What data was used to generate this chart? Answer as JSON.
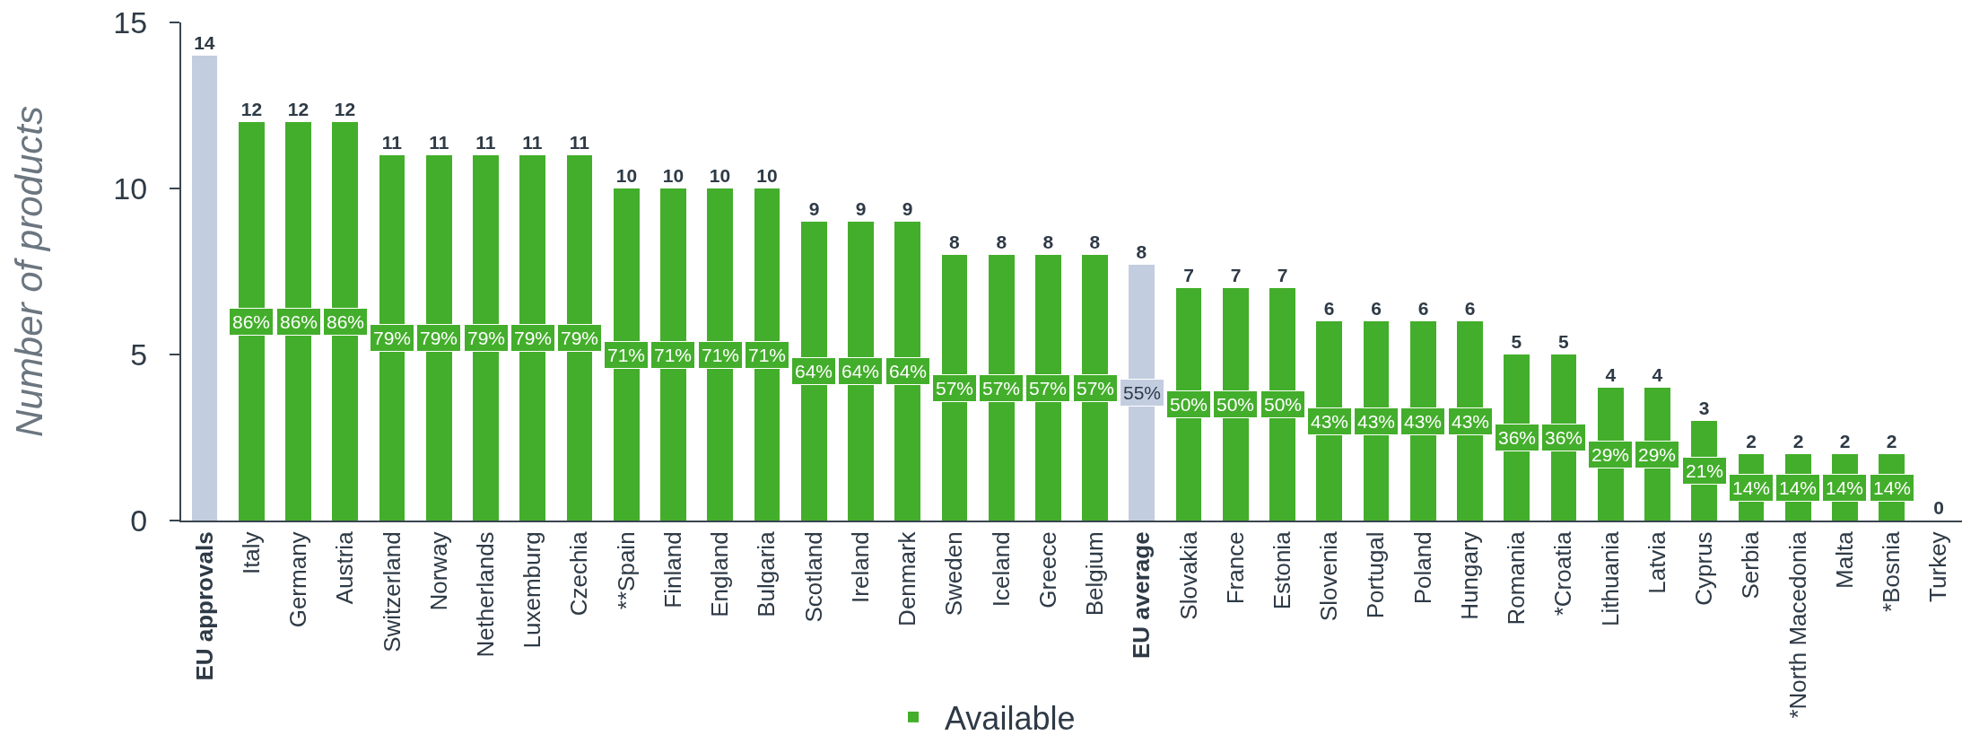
{
  "chart_data": {
    "type": "bar",
    "ylabel": "Number of products",
    "categories": [
      "EU approvals",
      "Italy",
      "Germany",
      "Austria",
      "Switzerland",
      "Norway",
      "Netherlands",
      "Luxemburg",
      "Czechia",
      "**Spain",
      "Finland",
      "England",
      "Bulgaria",
      "Scotland",
      "Ireland",
      "Denmark",
      "Sweden",
      "Iceland",
      "Greece",
      "Belgium",
      "EU average",
      "Slovakia",
      "France",
      "Estonia",
      "Slovenia",
      "Portugal",
      "Poland",
      "Hungary",
      "Romania",
      "*Croatia",
      "Lithuania",
      "Latvia",
      "Cyprus",
      "Serbia",
      "*North Macedonia",
      "Malta",
      "*Bosnia",
      "Turkey"
    ],
    "series": [
      {
        "name": "Available",
        "color": "#43ae2b",
        "values": [
          null,
          12,
          12,
          12,
          11,
          11,
          11,
          11,
          11,
          10,
          10,
          10,
          10,
          9,
          9,
          9,
          8,
          8,
          8,
          8,
          null,
          7,
          7,
          7,
          6,
          6,
          6,
          6,
          5,
          5,
          4,
          4,
          3,
          2,
          2,
          2,
          2,
          0
        ],
        "value_labels": [
          null,
          "12",
          "12",
          "12",
          "11",
          "11",
          "11",
          "11",
          "11",
          "10",
          "10",
          "10",
          "10",
          "9",
          "9",
          "9",
          "8",
          "8",
          "8",
          "8",
          null,
          "7",
          "7",
          "7",
          "6",
          "6",
          "6",
          "6",
          "5",
          "5",
          "4",
          "4",
          "3",
          "2",
          "2",
          "2",
          "2",
          "0"
        ]
      },
      {
        "color": "#c3cde0",
        "values": [
          14,
          null,
          null,
          null,
          null,
          null,
          null,
          null,
          null,
          null,
          null,
          null,
          null,
          null,
          null,
          null,
          null,
          null,
          null,
          null,
          7.7,
          null,
          null,
          null,
          null,
          null,
          null,
          null,
          null,
          null,
          null,
          null,
          null,
          null,
          null,
          null,
          null,
          null
        ],
        "value_labels": [
          "14",
          null,
          null,
          null,
          null,
          null,
          null,
          null,
          null,
          null,
          null,
          null,
          null,
          null,
          null,
          null,
          null,
          null,
          null,
          null,
          "8",
          null,
          null,
          null,
          null,
          null,
          null,
          null,
          null,
          null,
          null,
          null,
          null,
          null,
          null,
          null,
          null,
          null
        ]
      }
    ],
    "ylim": [
      0,
      15
    ],
    "yticks": [
      0,
      5,
      10,
      15
    ],
    "legend": "bottom",
    "annotations": [
      "86%",
      "86%",
      "86%",
      "79%",
      "79%",
      "79%",
      "79%",
      "79%",
      "71%",
      "71%",
      "71%",
      "71%",
      "64%",
      "64%",
      "64%",
      "57%",
      "57%",
      "57%",
      "57%",
      "55%",
      "50%",
      "50%",
      "50%",
      "43%",
      "43%",
      "43%",
      "43%",
      "36%",
      "36%",
      "29%",
      "29%",
      "21%",
      "14%",
      "14%",
      "14%",
      "14%"
    ]
  }
}
